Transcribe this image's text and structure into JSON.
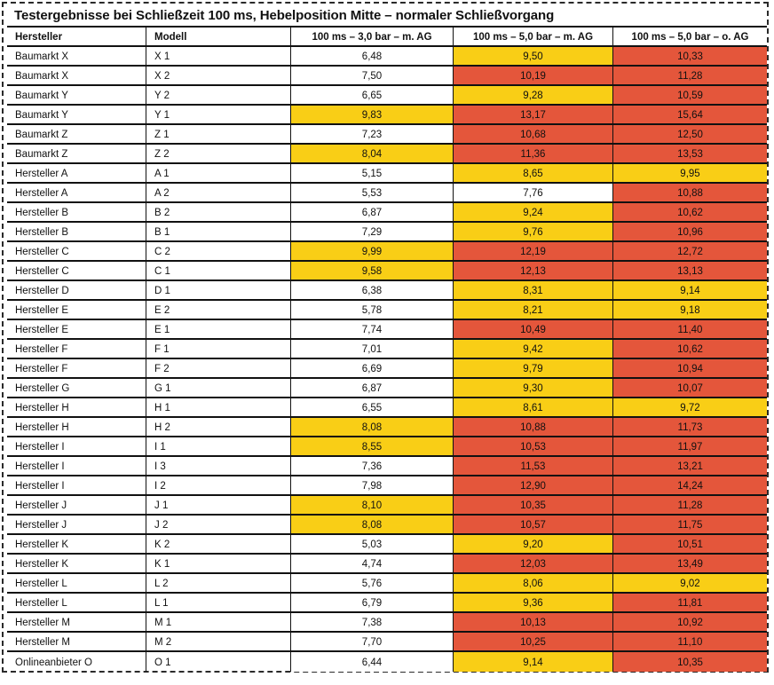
{
  "title": "Testergebnisse bei Schließzeit 100 ms, Hebelposition Mitte – normaler Schließvorgang",
  "colors": {
    "white": "#FFFFFF",
    "yellow": "#F9CE16",
    "red": "#E4563B",
    "border": "#111111"
  },
  "chart_data": {
    "type": "table",
    "title": "Testergebnisse bei Schließzeit 100 ms, Hebelposition Mitte – normaler Schließvorgang",
    "columns": [
      "Hersteller",
      "Modell",
      "100 ms – 3,0 bar – m. AG",
      "100 ms – 5,0 bar – m. AG",
      "100 ms – 5,0 bar – o. AG"
    ],
    "cell_color_legend": [
      "white",
      "yellow",
      "red"
    ],
    "rows": [
      {
        "hersteller": "Baumarkt X",
        "modell": "X 1",
        "values": [
          "6,48",
          "9,50",
          "10,33"
        ],
        "colors": [
          "white",
          "yellow",
          "red"
        ]
      },
      {
        "hersteller": "Baumarkt X",
        "modell": "X 2",
        "values": [
          "7,50",
          "10,19",
          "11,28"
        ],
        "colors": [
          "white",
          "red",
          "red"
        ]
      },
      {
        "hersteller": "Baumarkt Y",
        "modell": "Y 2",
        "values": [
          "6,65",
          "9,28",
          "10,59"
        ],
        "colors": [
          "white",
          "yellow",
          "red"
        ]
      },
      {
        "hersteller": "Baumarkt Y",
        "modell": "Y 1",
        "values": [
          "9,83",
          "13,17",
          "15,64"
        ],
        "colors": [
          "yellow",
          "red",
          "red"
        ]
      },
      {
        "hersteller": "Baumarkt Z",
        "modell": "Z 1",
        "values": [
          "7,23",
          "10,68",
          "12,50"
        ],
        "colors": [
          "white",
          "red",
          "red"
        ]
      },
      {
        "hersteller": "Baumarkt Z",
        "modell": "Z 2",
        "values": [
          "8,04",
          "11,36",
          "13,53"
        ],
        "colors": [
          "yellow",
          "red",
          "red"
        ]
      },
      {
        "hersteller": "Hersteller A",
        "modell": "A 1",
        "values": [
          "5,15",
          "8,65",
          "9,95"
        ],
        "colors": [
          "white",
          "yellow",
          "yellow"
        ]
      },
      {
        "hersteller": "Hersteller A",
        "modell": "A 2",
        "values": [
          "5,53",
          "7,76",
          "10,88"
        ],
        "colors": [
          "white",
          "white",
          "red"
        ]
      },
      {
        "hersteller": "Hersteller B",
        "modell": "B 2",
        "values": [
          "6,87",
          "9,24",
          "10,62"
        ],
        "colors": [
          "white",
          "yellow",
          "red"
        ]
      },
      {
        "hersteller": "Hersteller B",
        "modell": "B 1",
        "values": [
          "7,29",
          "9,76",
          "10,96"
        ],
        "colors": [
          "white",
          "yellow",
          "red"
        ]
      },
      {
        "hersteller": "Hersteller C",
        "modell": "C 2",
        "values": [
          "9,99",
          "12,19",
          "12,72"
        ],
        "colors": [
          "yellow",
          "red",
          "red"
        ]
      },
      {
        "hersteller": "Hersteller C",
        "modell": "C 1",
        "values": [
          "9,58",
          "12,13",
          "13,13"
        ],
        "colors": [
          "yellow",
          "red",
          "red"
        ]
      },
      {
        "hersteller": "Hersteller D",
        "modell": "D 1",
        "values": [
          "6,38",
          "8,31",
          "9,14"
        ],
        "colors": [
          "white",
          "yellow",
          "yellow"
        ]
      },
      {
        "hersteller": "Hersteller E",
        "modell": "E 2",
        "values": [
          "5,78",
          "8,21",
          "9,18"
        ],
        "colors": [
          "white",
          "yellow",
          "yellow"
        ]
      },
      {
        "hersteller": "Hersteller E",
        "modell": "E 1",
        "values": [
          "7,74",
          "10,49",
          "11,40"
        ],
        "colors": [
          "white",
          "red",
          "red"
        ]
      },
      {
        "hersteller": "Hersteller F",
        "modell": "F 1",
        "values": [
          "7,01",
          "9,42",
          "10,62"
        ],
        "colors": [
          "white",
          "yellow",
          "red"
        ]
      },
      {
        "hersteller": "Hersteller F",
        "modell": "F 2",
        "values": [
          "6,69",
          "9,79",
          "10,94"
        ],
        "colors": [
          "white",
          "yellow",
          "red"
        ]
      },
      {
        "hersteller": "Hersteller G",
        "modell": "G 1",
        "values": [
          "6,87",
          "9,30",
          "10,07"
        ],
        "colors": [
          "white",
          "yellow",
          "red"
        ]
      },
      {
        "hersteller": "Hersteller H",
        "modell": "H 1",
        "values": [
          "6,55",
          "8,61",
          "9,72"
        ],
        "colors": [
          "white",
          "yellow",
          "yellow"
        ]
      },
      {
        "hersteller": "Hersteller H",
        "modell": "H 2",
        "values": [
          "8,08",
          "10,88",
          "11,73"
        ],
        "colors": [
          "yellow",
          "red",
          "red"
        ]
      },
      {
        "hersteller": "Hersteller I",
        "modell": "I 1",
        "values": [
          "8,55",
          "10,53",
          "11,97"
        ],
        "colors": [
          "yellow",
          "red",
          "red"
        ]
      },
      {
        "hersteller": "Hersteller I",
        "modell": "I 3",
        "values": [
          "7,36",
          "11,53",
          "13,21"
        ],
        "colors": [
          "white",
          "red",
          "red"
        ]
      },
      {
        "hersteller": "Hersteller I",
        "modell": "I 2",
        "values": [
          "7,98",
          "12,90",
          "14,24"
        ],
        "colors": [
          "white",
          "red",
          "red"
        ]
      },
      {
        "hersteller": "Hersteller J",
        "modell": "J 1",
        "values": [
          "8,10",
          "10,35",
          "11,28"
        ],
        "colors": [
          "yellow",
          "red",
          "red"
        ]
      },
      {
        "hersteller": "Hersteller J",
        "modell": "J 2",
        "values": [
          "8,08",
          "10,57",
          "11,75"
        ],
        "colors": [
          "yellow",
          "red",
          "red"
        ]
      },
      {
        "hersteller": "Hersteller K",
        "modell": "K 2",
        "values": [
          "5,03",
          "9,20",
          "10,51"
        ],
        "colors": [
          "white",
          "yellow",
          "red"
        ]
      },
      {
        "hersteller": "Hersteller K",
        "modell": "K 1",
        "values": [
          "4,74",
          "12,03",
          "13,49"
        ],
        "colors": [
          "white",
          "red",
          "red"
        ]
      },
      {
        "hersteller": "Hersteller L",
        "modell": "L 2",
        "values": [
          "5,76",
          "8,06",
          "9,02"
        ],
        "colors": [
          "white",
          "yellow",
          "yellow"
        ]
      },
      {
        "hersteller": "Hersteller L",
        "modell": "L 1",
        "values": [
          "6,79",
          "9,36",
          "11,81"
        ],
        "colors": [
          "white",
          "yellow",
          "red"
        ]
      },
      {
        "hersteller": "Hersteller M",
        "modell": "M 1",
        "values": [
          "7,38",
          "10,13",
          "10,92"
        ],
        "colors": [
          "white",
          "red",
          "red"
        ]
      },
      {
        "hersteller": "Hersteller M",
        "modell": "M 2",
        "values": [
          "7,70",
          "10,25",
          "11,10"
        ],
        "colors": [
          "white",
          "red",
          "red"
        ]
      },
      {
        "hersteller": "Onlineanbieter O",
        "modell": "O 1",
        "values": [
          "6,44",
          "9,14",
          "10,35"
        ],
        "colors": [
          "white",
          "yellow",
          "red"
        ]
      }
    ]
  }
}
